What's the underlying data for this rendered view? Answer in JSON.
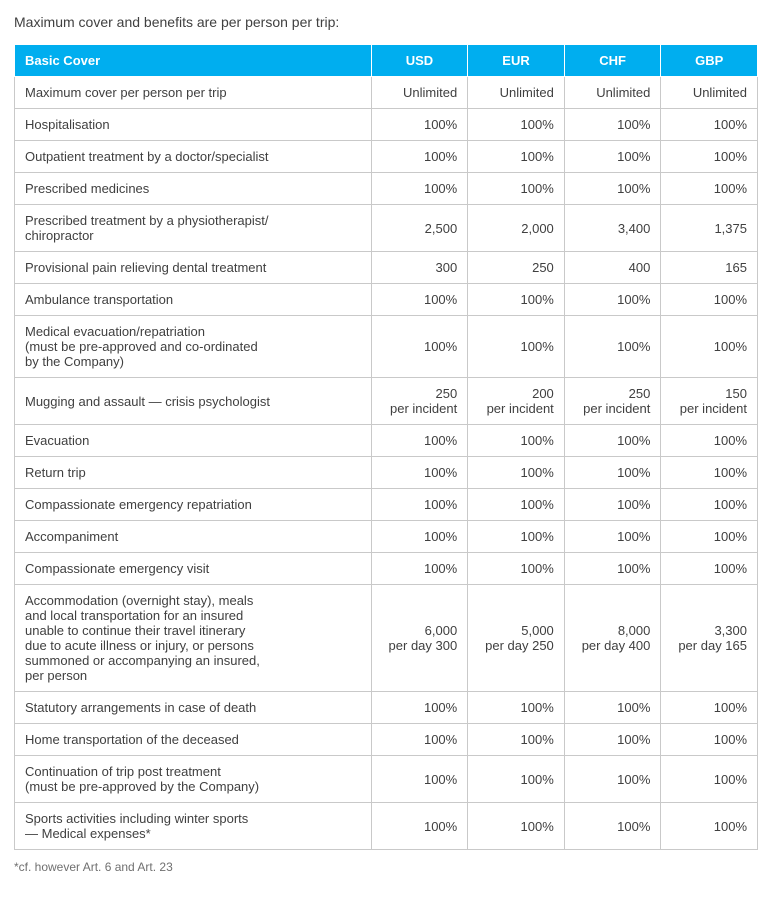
{
  "intro_text": "Maximum cover and benefits are per person per trip:",
  "table": {
    "header_title": "Basic Cover",
    "columns": [
      "USD",
      "EUR",
      "CHF",
      "GBP"
    ],
    "rows": [
      {
        "label": "Maximum cover per person per trip",
        "values": [
          "Unlimited",
          "Unlimited",
          "Unlimited",
          "Unlimited"
        ]
      },
      {
        "label": "Hospitalisation",
        "values": [
          "100%",
          "100%",
          "100%",
          "100%"
        ]
      },
      {
        "label": "Outpatient treatment by a doctor/specialist",
        "values": [
          "100%",
          "100%",
          "100%",
          "100%"
        ]
      },
      {
        "label": "Prescribed medicines",
        "values": [
          "100%",
          "100%",
          "100%",
          "100%"
        ]
      },
      {
        "label": "Prescribed treatment by a physiotherapist/\nchiropractor",
        "values": [
          "2,500",
          "2,000",
          "3,400",
          "1,375"
        ]
      },
      {
        "label": "Provisional pain relieving dental treatment",
        "values": [
          "300",
          "250",
          "400",
          "165"
        ]
      },
      {
        "label": "Ambulance transportation",
        "values": [
          "100%",
          "100%",
          "100%",
          "100%"
        ]
      },
      {
        "label": "Medical evacuation/repatriation\n(must be pre-approved and co-ordinated\nby the Company)",
        "values": [
          "100%",
          "100%",
          "100%",
          "100%"
        ]
      },
      {
        "label": "Mugging and assault — crisis psychologist",
        "values": [
          "250\nper incident",
          "200\nper incident",
          "250\nper incident",
          "150\nper incident"
        ]
      },
      {
        "label": "Evacuation",
        "values": [
          "100%",
          "100%",
          "100%",
          "100%"
        ]
      },
      {
        "label": "Return trip",
        "values": [
          "100%",
          "100%",
          "100%",
          "100%"
        ]
      },
      {
        "label": "Compassionate emergency repatriation",
        "values": [
          "100%",
          "100%",
          "100%",
          "100%"
        ]
      },
      {
        "label": "Accompaniment",
        "values": [
          "100%",
          "100%",
          "100%",
          "100%"
        ]
      },
      {
        "label": "Compassionate emergency visit",
        "values": [
          "100%",
          "100%",
          "100%",
          "100%"
        ]
      },
      {
        "label": "Accommodation (overnight stay), meals\nand local transportation for an insured\nunable to continue their travel itinerary\ndue to acute illness or injury, or persons\nsummoned or accompanying an insured,\nper person",
        "values": [
          "6,000\nper day 300",
          "5,000\nper day 250",
          "8,000\nper day 400",
          "3,300\nper day 165"
        ]
      },
      {
        "label": "Statutory arrangements in case of death",
        "values": [
          "100%",
          "100%",
          "100%",
          "100%"
        ]
      },
      {
        "label": "Home transportation of the deceased",
        "values": [
          "100%",
          "100%",
          "100%",
          "100%"
        ]
      },
      {
        "label": "Continuation of trip post treatment\n(must be pre-approved by the Company)",
        "values": [
          "100%",
          "100%",
          "100%",
          "100%"
        ]
      },
      {
        "label": "Sports activities including winter sports\n— Medical expenses*",
        "values": [
          "100%",
          "100%",
          "100%",
          "100%"
        ]
      }
    ]
  },
  "footnote": "*cf. however Art. 6 and Art. 23",
  "colors": {
    "header_bg": "#00aeef",
    "header_fg": "#ffffff",
    "border": "#c9c9c9",
    "text": "#404040"
  }
}
